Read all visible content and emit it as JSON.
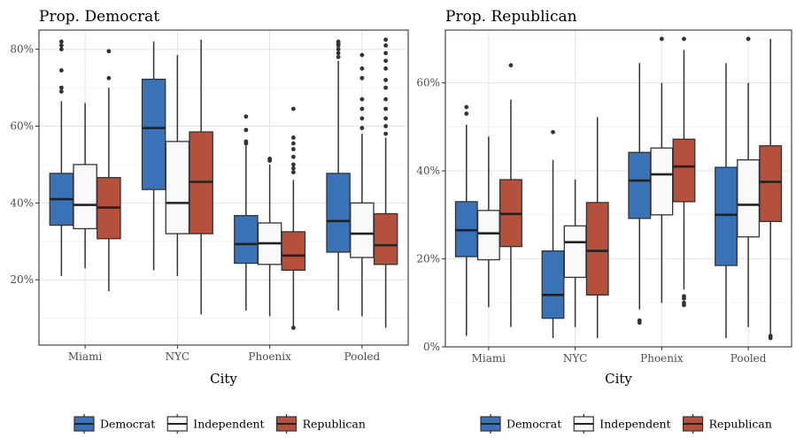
{
  "chart_data": [
    {
      "type": "boxplot",
      "title": "Prop. Democrat",
      "xlabel": "City",
      "ylabel": "",
      "ylim": [
        0.03,
        0.85
      ],
      "yticks": [
        0.2,
        0.4,
        0.6,
        0.8
      ],
      "ytick_labels": [
        "20%",
        "40%",
        "60%",
        "80%"
      ],
      "categories": [
        "Miami",
        "NYC",
        "Phoenix",
        "Pooled"
      ],
      "grid": true,
      "series": [
        {
          "name": "Democrat",
          "color": "#3a72b8",
          "boxes": [
            {
              "min": 0.21,
              "q1": 0.342,
              "median": 0.41,
              "q3": 0.477,
              "max": 0.665,
              "outliers": [
                0.69,
                0.7,
                0.745,
                0.8,
                0.81,
                0.82
              ]
            },
            {
              "min": 0.225,
              "q1": 0.435,
              "median": 0.595,
              "q3": 0.722,
              "max": 0.82,
              "outliers": []
            },
            {
              "min": 0.12,
              "q1": 0.243,
              "median": 0.293,
              "q3": 0.367,
              "max": 0.55,
              "outliers": [
                0.555,
                0.56,
                0.59,
                0.625
              ]
            },
            {
              "min": 0.12,
              "q1": 0.272,
              "median": 0.353,
              "q3": 0.477,
              "max": 0.77,
              "outliers": [
                0.78,
                0.79,
                0.8,
                0.81,
                0.815,
                0.82
              ]
            }
          ]
        },
        {
          "name": "Independent",
          "color": "#f9f9f9",
          "boxes": [
            {
              "min": 0.23,
              "q1": 0.333,
              "median": 0.395,
              "q3": 0.5,
              "max": 0.66,
              "outliers": []
            },
            {
              "min": 0.21,
              "q1": 0.32,
              "median": 0.4,
              "q3": 0.56,
              "max": 0.785,
              "outliers": []
            },
            {
              "min": 0.105,
              "q1": 0.24,
              "median": 0.295,
              "q3": 0.348,
              "max": 0.5,
              "outliers": [
                0.51,
                0.515
              ]
            },
            {
              "min": 0.105,
              "q1": 0.258,
              "median": 0.32,
              "q3": 0.4,
              "max": 0.58,
              "outliers": [
                0.595,
                0.62,
                0.645,
                0.67,
                0.725,
                0.75,
                0.785
              ]
            }
          ]
        },
        {
          "name": "Republican",
          "color": "#b5503c",
          "boxes": [
            {
              "min": 0.17,
              "q1": 0.307,
              "median": 0.388,
              "q3": 0.466,
              "max": 0.7,
              "outliers": [
                0.725,
                0.795
              ]
            },
            {
              "min": 0.11,
              "q1": 0.32,
              "median": 0.455,
              "q3": 0.585,
              "max": 0.825,
              "outliers": []
            },
            {
              "min": 0.075,
              "q1": 0.225,
              "median": 0.263,
              "q3": 0.325,
              "max": 0.46,
              "outliers": [
                0.075,
                0.48,
                0.49,
                0.5,
                0.52,
                0.54,
                0.555,
                0.57,
                0.645
              ]
            },
            {
              "min": 0.075,
              "q1": 0.24,
              "median": 0.29,
              "q3": 0.372,
              "max": 0.57,
              "outliers": [
                0.58,
                0.6,
                0.62,
                0.645,
                0.67,
                0.7,
                0.72,
                0.75,
                0.77,
                0.79,
                0.81,
                0.825
              ]
            }
          ]
        }
      ]
    },
    {
      "type": "boxplot",
      "title": "Prop. Republican",
      "xlabel": "City",
      "ylabel": "",
      "ylim": [
        0.0,
        0.72
      ],
      "yticks": [
        0.0,
        0.2,
        0.4,
        0.6
      ],
      "ytick_labels": [
        "0%",
        "20%",
        "40%",
        "60%"
      ],
      "categories": [
        "Miami",
        "NYC",
        "Phoenix",
        "Pooled"
      ],
      "grid": true,
      "series": [
        {
          "name": "Democrat",
          "color": "#3a72b8",
          "boxes": [
            {
              "min": 0.025,
              "q1": 0.205,
              "median": 0.265,
              "q3": 0.33,
              "max": 0.505,
              "outliers": [
                0.53,
                0.545
              ]
            },
            {
              "min": 0.02,
              "q1": 0.065,
              "median": 0.118,
              "q3": 0.218,
              "max": 0.425,
              "outliers": [
                0.488
              ]
            },
            {
              "min": 0.085,
              "q1": 0.292,
              "median": 0.378,
              "q3": 0.442,
              "max": 0.645,
              "outliers": [
                0.055,
                0.06
              ]
            },
            {
              "min": 0.02,
              "q1": 0.185,
              "median": 0.3,
              "q3": 0.408,
              "max": 0.645,
              "outliers": []
            }
          ]
        },
        {
          "name": "Independent",
          "color": "#f9f9f9",
          "boxes": [
            {
              "min": 0.09,
              "q1": 0.198,
              "median": 0.258,
              "q3": 0.31,
              "max": 0.478,
              "outliers": []
            },
            {
              "min": 0.045,
              "q1": 0.158,
              "median": 0.238,
              "q3": 0.275,
              "max": 0.38,
              "outliers": []
            },
            {
              "min": 0.1,
              "q1": 0.3,
              "median": 0.392,
              "q3": 0.452,
              "max": 0.6,
              "outliers": [
                0.7
              ]
            },
            {
              "min": 0.045,
              "q1": 0.25,
              "median": 0.323,
              "q3": 0.425,
              "max": 0.6,
              "outliers": [
                0.7
              ]
            }
          ]
        },
        {
          "name": "Republican",
          "color": "#b5503c",
          "boxes": [
            {
              "min": 0.045,
              "q1": 0.228,
              "median": 0.302,
              "q3": 0.38,
              "max": 0.562,
              "outliers": [
                0.64
              ]
            },
            {
              "min": 0.02,
              "q1": 0.118,
              "median": 0.218,
              "q3": 0.328,
              "max": 0.522,
              "outliers": []
            },
            {
              "min": 0.13,
              "q1": 0.33,
              "median": 0.41,
              "q3": 0.472,
              "max": 0.675,
              "outliers": [
                0.095,
                0.1,
                0.11,
                0.115,
                0.7
              ]
            },
            {
              "min": 0.03,
              "q1": 0.285,
              "median": 0.375,
              "q3": 0.457,
              "max": 0.7,
              "outliers": [
                0.02,
                0.025
              ]
            }
          ]
        }
      ]
    }
  ]
}
